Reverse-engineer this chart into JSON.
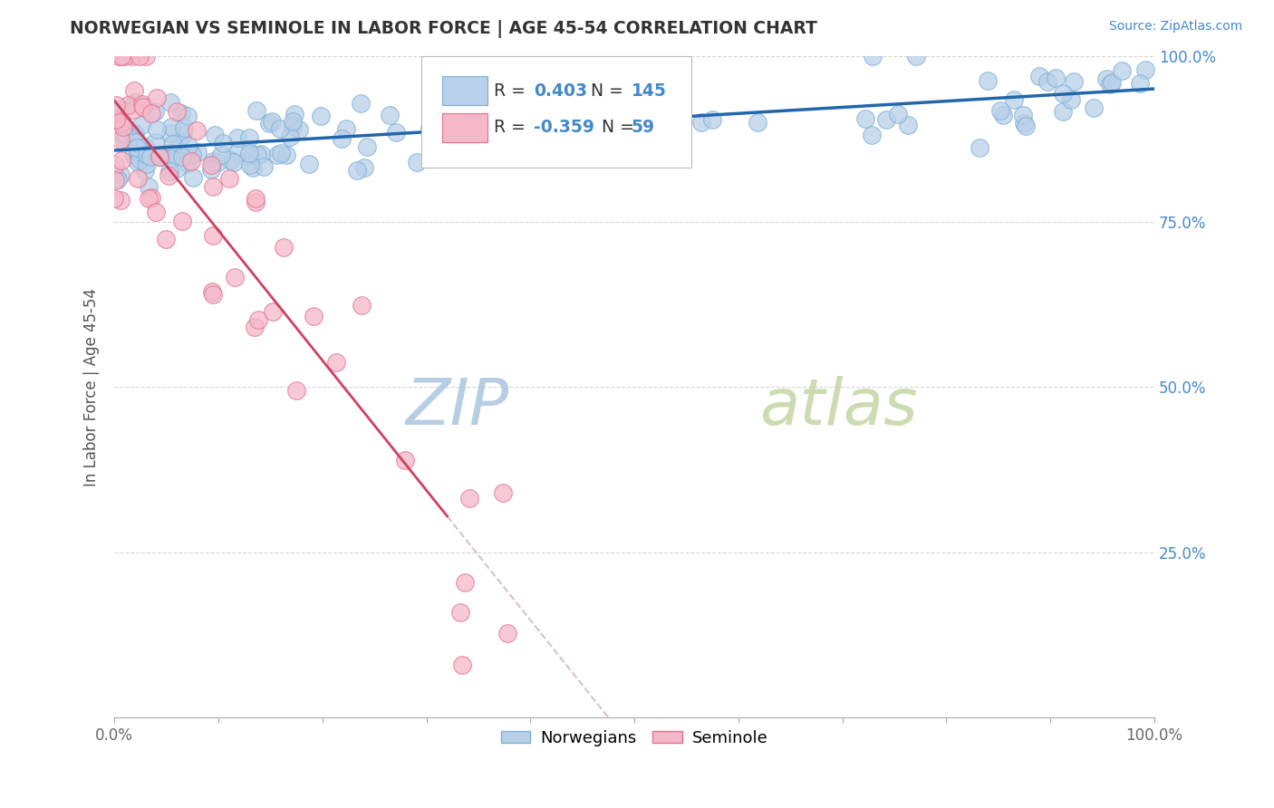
{
  "title": "NORWEGIAN VS SEMINOLE IN LABOR FORCE | AGE 45-54 CORRELATION CHART",
  "source": "Source: ZipAtlas.com",
  "ylabel": "In Labor Force | Age 45-54",
  "xlim": [
    0.0,
    1.0
  ],
  "ylim": [
    0.0,
    1.0
  ],
  "norwegian_R": 0.403,
  "norwegian_N": 145,
  "seminole_R": -0.359,
  "seminole_N": 59,
  "norwegian_color": "#b8d0e8",
  "norwegian_edge_color": "#7bafd4",
  "seminole_color": "#f5b8c8",
  "seminole_edge_color": "#e07090",
  "trend_norwegian_color": "#2166ac",
  "trend_seminole_color": "#d04060",
  "trend_seminole_dash_color": "#d8b8c0",
  "grid_color": "#cccccc",
  "title_color": "#333333",
  "background_color": "#ffffff",
  "legend_value_color": "#4488cc",
  "right_tick_color": "#4488cc",
  "watermark_zip_color": "#b0c8e0",
  "watermark_atlas_color": "#c8d8a8"
}
